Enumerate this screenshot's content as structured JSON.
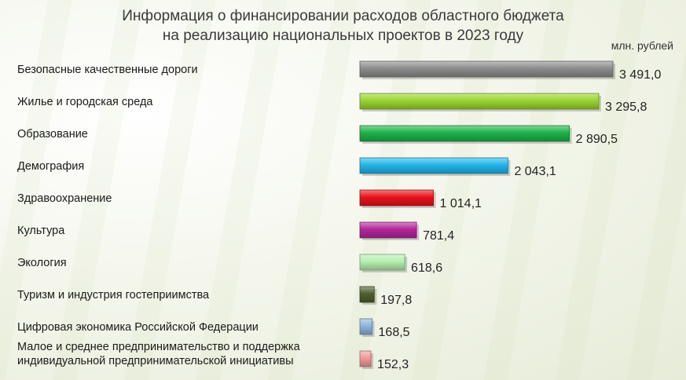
{
  "title_line1": "Информация о финансировании расходов областного бюджета",
  "title_line2": "на реализацию национальных проектов в 2023 году",
  "unit": "млн. рублей",
  "chart_data": {
    "type": "bar",
    "orientation": "horizontal",
    "title": "Информация о финансировании расходов областного бюджета на реализацию национальных проектов в 2023 году",
    "unit": "млн. рублей",
    "grid": false,
    "legend": "none",
    "categories": [
      [
        "Безопасные качественные дороги"
      ],
      [
        "Жилье и городская среда"
      ],
      [
        "Образование"
      ],
      [
        "Демография"
      ],
      [
        "Здравоохранение"
      ],
      [
        "Культура"
      ],
      [
        "Экология"
      ],
      [
        "Туризм и индустрия гостеприимства"
      ],
      [
        "Цифровая экономика Российской Федерации"
      ],
      [
        "Малое и среднее предпринимательство и поддержка",
        "индивидуальной предпринимательской инициативы"
      ]
    ],
    "values": [
      3491.0,
      3295.8,
      2890.5,
      2043.1,
      1014.1,
      781.4,
      618.6,
      197.8,
      168.5,
      152.3
    ],
    "value_labels": [
      "3 491,0",
      "3 295,8",
      "2 890,5",
      "2 043,1",
      "1 014,1",
      "781,4",
      "618,6",
      "197,8",
      "168,5",
      "152,3"
    ],
    "colors": [
      "#8c8c8c",
      "#9ad432",
      "#1fb24a",
      "#22b4ea",
      "#e8121c",
      "#b2269a",
      "#b4efb0",
      "#4f5e2e",
      "#8eb4dc",
      "#f09a9a"
    ],
    "xlim": [
      0,
      3491.0
    ]
  }
}
